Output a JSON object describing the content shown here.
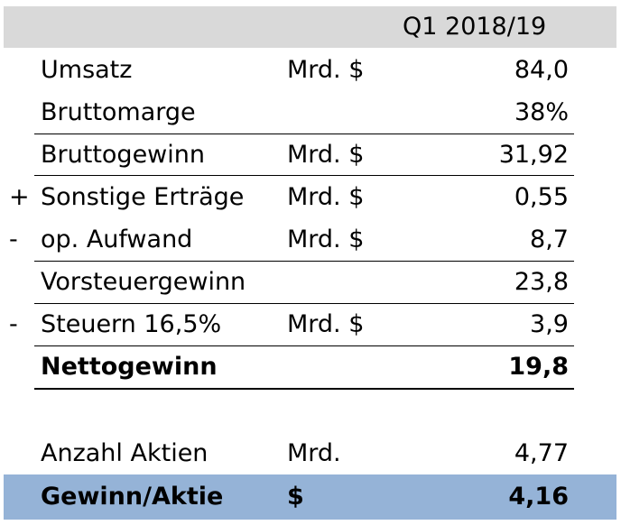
{
  "header": {
    "period": "Q1 2018/19"
  },
  "rows": [
    {
      "sign": "",
      "label": "Umsatz",
      "unit": "Mrd. $",
      "value": "84,0"
    },
    {
      "sign": "",
      "label": "Bruttomarge",
      "unit": "",
      "value": "38%"
    },
    {
      "sign": "",
      "label": "Bruttogewinn",
      "unit": "Mrd. $",
      "value": "31,92"
    },
    {
      "sign": "+",
      "label": "Sonstige Erträge",
      "unit": "Mrd. $",
      "value": "0,55"
    },
    {
      "sign": "-",
      "label": "op. Aufwand",
      "unit": "Mrd. $",
      "value": "8,7"
    },
    {
      "sign": "",
      "label": "Vorsteuergewinn",
      "unit": "",
      "value": "23,8"
    },
    {
      "sign": "-",
      "label": "Steuern 16,5%",
      "unit": "Mrd. $",
      "value": "3,9"
    },
    {
      "sign": "",
      "label": "Nettogewinn",
      "unit": "",
      "value": "19,8"
    },
    {
      "sign": "",
      "label": "Anzahl Aktien",
      "unit": "Mrd.",
      "value": "4,77"
    },
    {
      "sign": "",
      "label": "Gewinn/Aktie",
      "unit": "$",
      "value": "4,16"
    }
  ],
  "colors": {
    "header_band": "#d9d9d9",
    "highlight_band": "#95b3d7"
  }
}
